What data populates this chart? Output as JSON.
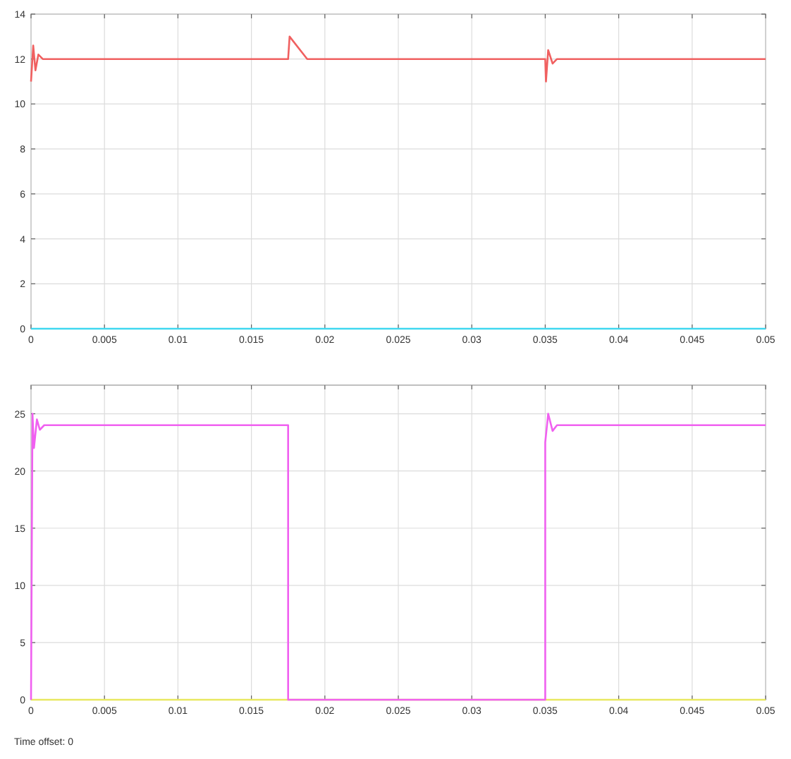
{
  "chart_data": [
    {
      "type": "line",
      "xlim": [
        0,
        0.05
      ],
      "xticks": [
        0,
        0.005,
        0.01,
        0.015,
        0.02,
        0.025,
        0.03,
        0.035,
        0.04,
        0.045,
        0.05
      ],
      "ylim": [
        0,
        14
      ],
      "yticks": [
        0,
        2,
        4,
        6,
        8,
        10,
        12,
        14
      ],
      "grid": true,
      "series": [
        {
          "color": "#f06060",
          "x": [
            0,
            0.00015,
            0.0003,
            0.0005,
            0.0008,
            0.0175,
            0.0176,
            0.0188,
            0.035,
            0.03505,
            0.0352,
            0.0355,
            0.0358,
            0.05
          ],
          "values": [
            11,
            12.6,
            11.5,
            12.2,
            12,
            12,
            13,
            12,
            12,
            11,
            12.4,
            11.8,
            12,
            12
          ]
        },
        {
          "color": "#40d8f0",
          "x": [
            0,
            0.05
          ],
          "values": [
            0,
            0
          ]
        }
      ]
    },
    {
      "type": "line",
      "xlim": [
        0,
        0.05
      ],
      "xticks": [
        0,
        0.005,
        0.01,
        0.015,
        0.02,
        0.025,
        0.03,
        0.035,
        0.04,
        0.045,
        0.05
      ],
      "ylim": [
        0,
        27.5
      ],
      "yticks": [
        0,
        5,
        10,
        15,
        20,
        25
      ],
      "grid": true,
      "annotations": [
        "Time offset: 0"
      ],
      "series": [
        {
          "color": "#e8e860",
          "x": [
            0,
            0.05
          ],
          "values": [
            0,
            0
          ]
        },
        {
          "color": "#f060f0",
          "x": [
            0,
            0.0001,
            0.0002,
            0.0004,
            0.0006,
            0.0009,
            0.0175,
            0.0175,
            0.035,
            0.035,
            0.0352,
            0.0355,
            0.0358,
            0.05
          ],
          "values": [
            0,
            25,
            22,
            24.5,
            23.6,
            24,
            24,
            0,
            0,
            22.5,
            25,
            23.5,
            24,
            24
          ]
        }
      ]
    }
  ]
}
